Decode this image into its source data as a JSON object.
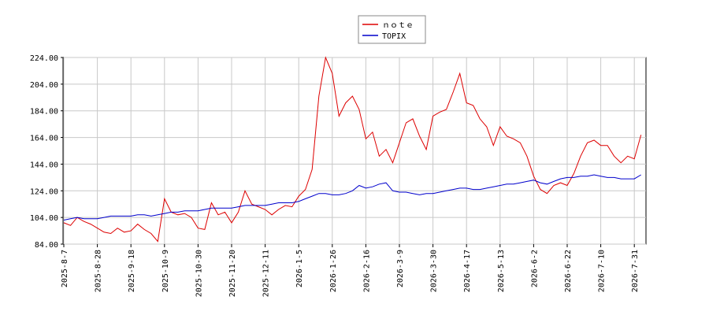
{
  "chart_data": {
    "type": "line",
    "categories": [
      "2025-8-7",
      null,
      null,
      null,
      null,
      "2025-8-28",
      null,
      null,
      null,
      null,
      "2025-9-18",
      null,
      null,
      null,
      null,
      "2025-10-9",
      null,
      null,
      null,
      null,
      "2025-10-30",
      null,
      null,
      null,
      null,
      "2025-11-20",
      null,
      null,
      null,
      null,
      "2025-12-11",
      null,
      null,
      null,
      null,
      "2026-1-5",
      null,
      null,
      null,
      null,
      "2026-1-26",
      null,
      null,
      null,
      null,
      "2026-2-16",
      null,
      null,
      null,
      null,
      "2026-3-9",
      null,
      null,
      null,
      null,
      "2026-3-30",
      null,
      null,
      null,
      null,
      "2026-4-17",
      null,
      null,
      null,
      null,
      "2026-5-13",
      null,
      null,
      null,
      null,
      "2026-6-2",
      null,
      null,
      null,
      null,
      "2026-6-22",
      null,
      null,
      null,
      null,
      "2026-7-10",
      null,
      null,
      null,
      null,
      "2026-7-31",
      null
    ],
    "series": [
      {
        "name": "ｎｏｔｅ",
        "color": "#dd0000",
        "values": [
          100,
          98,
          104,
          101,
          99,
          96,
          93,
          92,
          96,
          93,
          94,
          99,
          95,
          92,
          86,
          118,
          108,
          106,
          107,
          104,
          96,
          95,
          115,
          106,
          108,
          100,
          108,
          124,
          114,
          112,
          110,
          106,
          110,
          113,
          112,
          120,
          125,
          140,
          195,
          224,
          212,
          180,
          190,
          195,
          185,
          163,
          168,
          150,
          155,
          145,
          160,
          175,
          178,
          165,
          155,
          180,
          183,
          185,
          198,
          212,
          190,
          188,
          178,
          172,
          158,
          172,
          165,
          163,
          160,
          150,
          135,
          125,
          122,
          128,
          130,
          128,
          137,
          150,
          160,
          162,
          158,
          158,
          150,
          145,
          150,
          148,
          166
        ]
      },
      {
        "name": "TOPIX",
        "color": "#0000cc",
        "values": [
          102,
          103,
          104,
          103,
          103,
          103,
          104,
          105,
          105,
          105,
          105,
          106,
          106,
          105,
          106,
          107,
          108,
          108,
          109,
          109,
          109,
          110,
          111,
          111,
          111,
          111,
          112,
          113,
          113,
          113,
          113,
          114,
          115,
          115,
          115,
          116,
          118,
          120,
          122,
          122,
          121,
          121,
          122,
          124,
          128,
          126,
          127,
          129,
          130,
          124,
          123,
          123,
          122,
          121,
          122,
          122,
          123,
          124,
          125,
          126,
          126,
          125,
          125,
          126,
          127,
          128,
          129,
          129,
          130,
          131,
          132,
          130,
          129,
          131,
          133,
          134,
          134,
          135,
          135,
          136,
          135,
          134,
          134,
          133,
          133,
          133,
          136
        ]
      }
    ],
    "ylim": [
      84,
      224
    ],
    "yticks": [
      {
        "value": 84,
        "label": "84.00"
      },
      {
        "value": 104,
        "label": "104.00"
      },
      {
        "value": 124,
        "label": "124.00"
      },
      {
        "value": 144,
        "label": "144.00"
      },
      {
        "value": 164,
        "label": "164.00"
      },
      {
        "value": 184,
        "label": "184.00"
      },
      {
        "value": 204,
        "label": "204.00"
      },
      {
        "value": 224,
        "label": "224.00"
      }
    ],
    "grid": true
  }
}
